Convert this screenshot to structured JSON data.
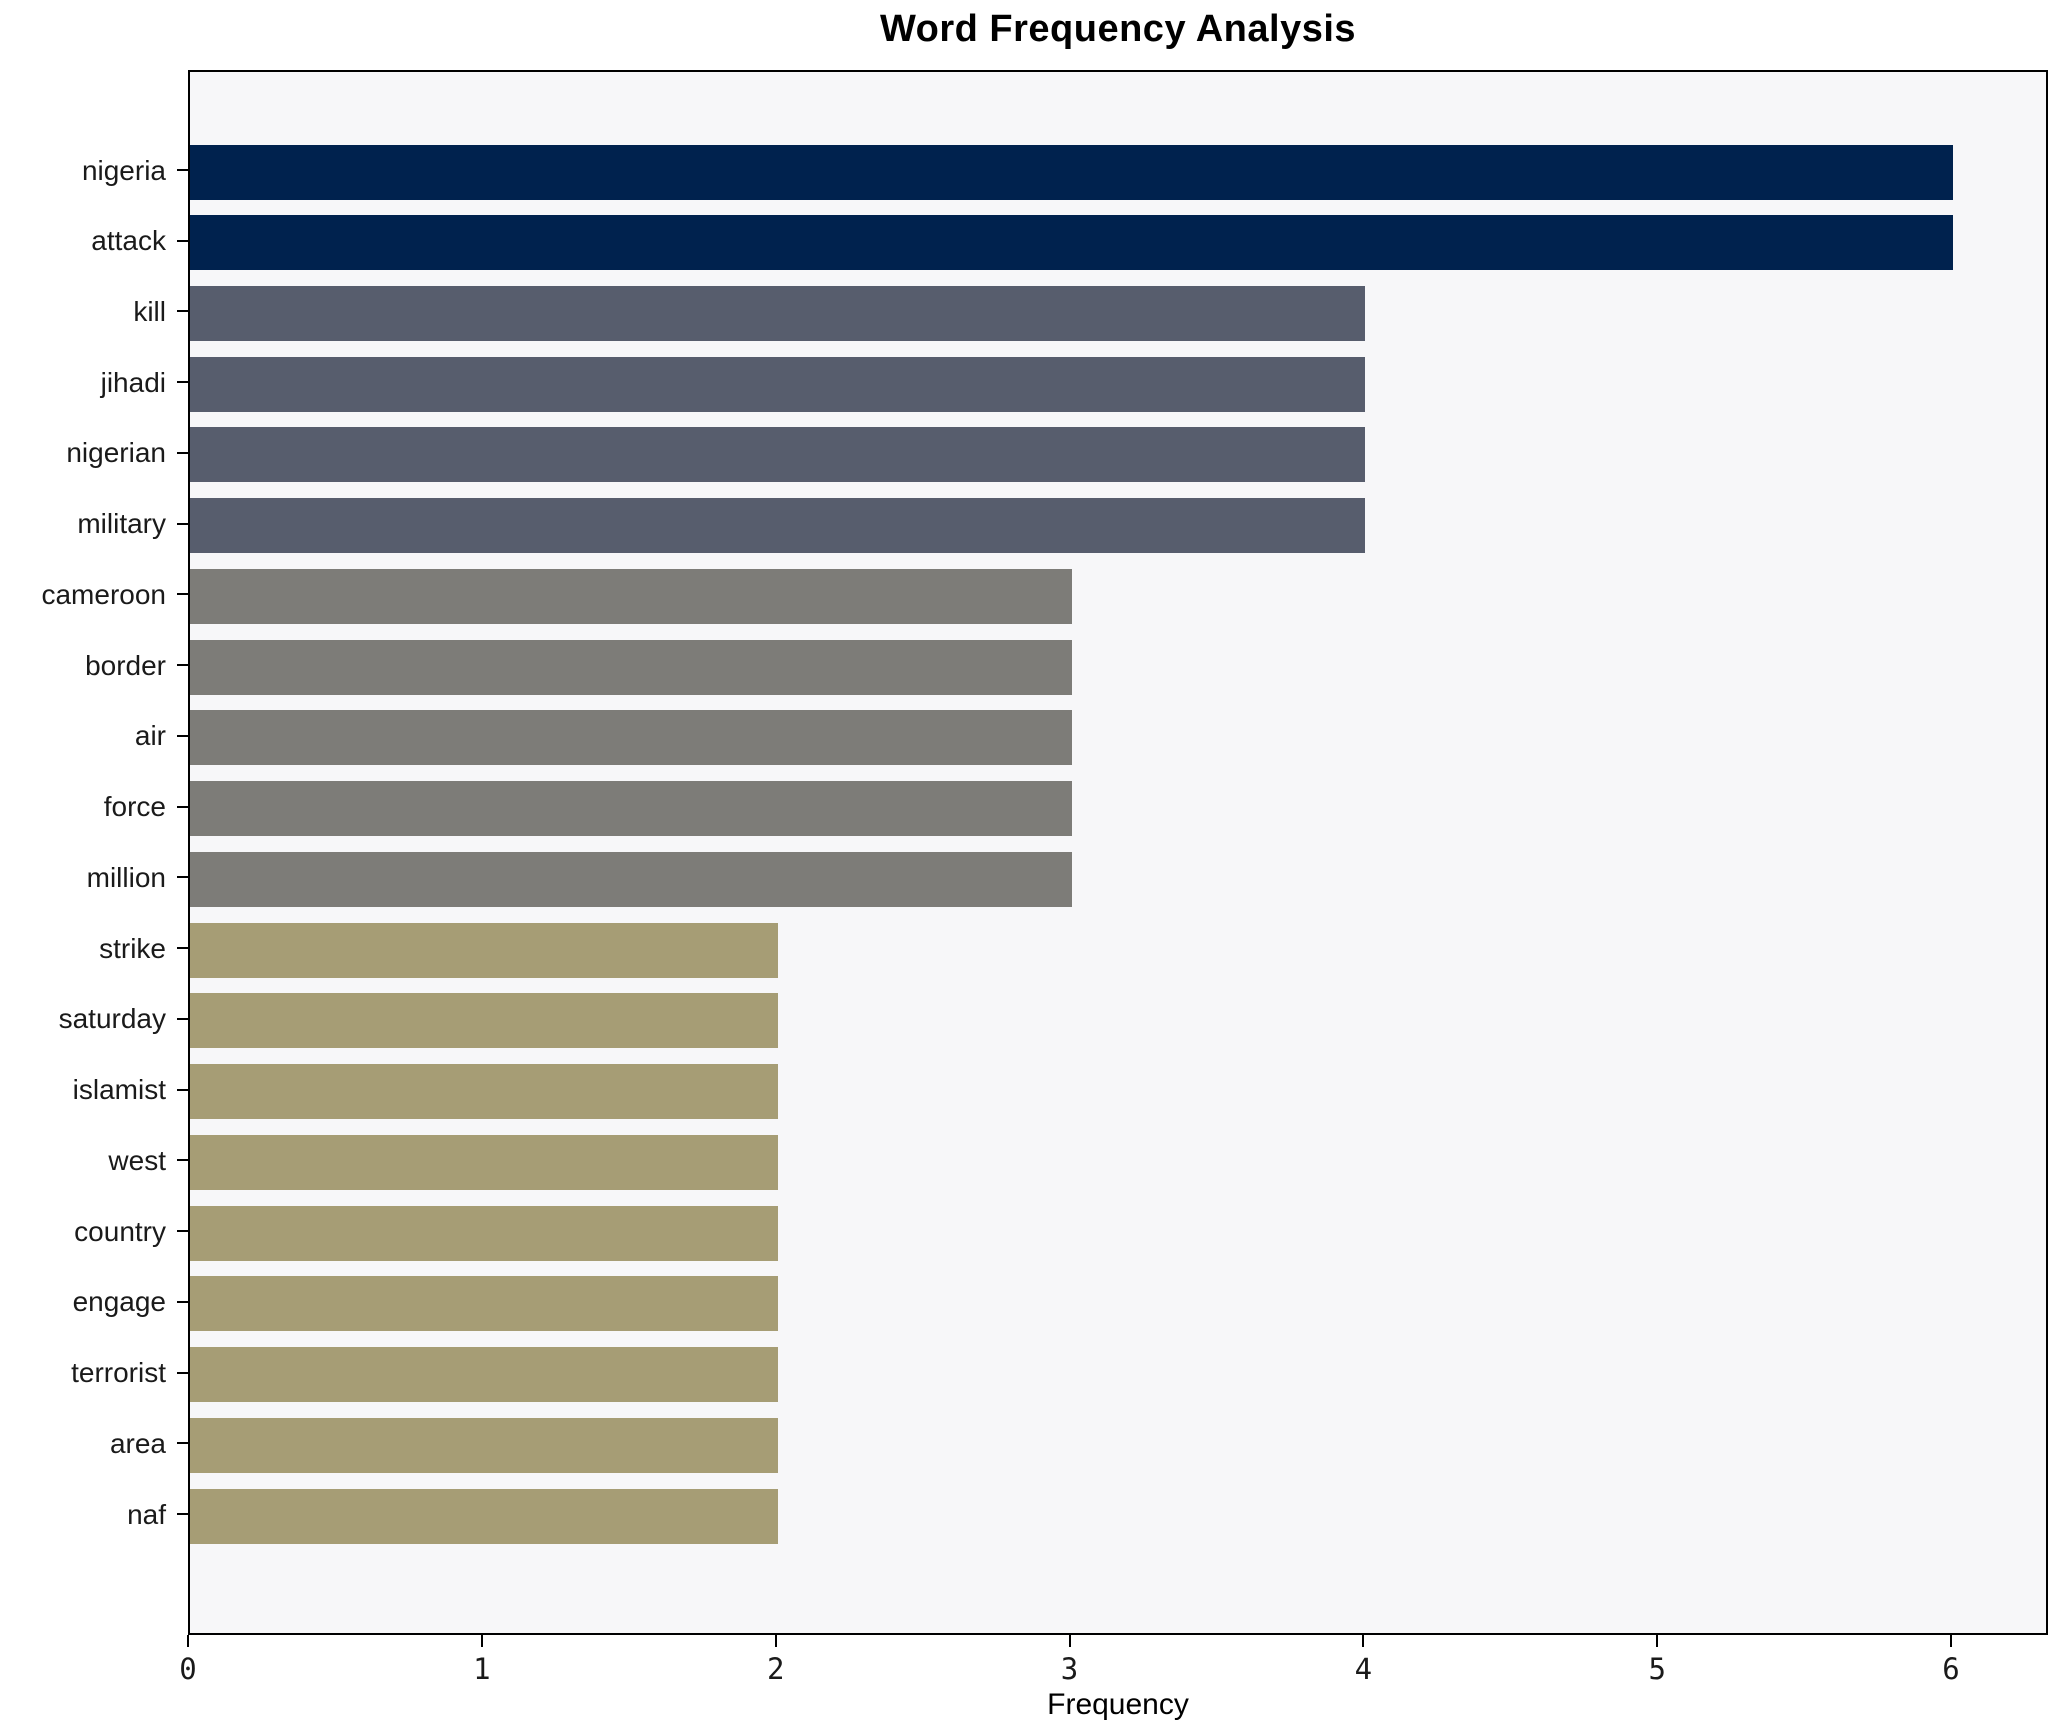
{
  "title": "Word Frequency Analysis",
  "chart_data": {
    "type": "bar",
    "orientation": "horizontal",
    "title": "Word Frequency Analysis",
    "xlabel": "Frequency",
    "ylabel": "",
    "categories": [
      "nigeria",
      "attack",
      "kill",
      "jihadi",
      "nigerian",
      "military",
      "cameroon",
      "border",
      "air",
      "force",
      "million",
      "strike",
      "saturday",
      "islamist",
      "west",
      "country",
      "engage",
      "terrorist",
      "area",
      "naf"
    ],
    "values": [
      6,
      6,
      4,
      4,
      4,
      4,
      3,
      3,
      3,
      3,
      3,
      2,
      2,
      2,
      2,
      2,
      2,
      2,
      2,
      2
    ],
    "x_ticks": [
      0,
      1,
      2,
      3,
      4,
      5,
      6
    ],
    "xlim": [
      0,
      6.33
    ],
    "grid": false,
    "legend": "none",
    "colors_by_value": {
      "6": "#00224e",
      "4": "#575d6d",
      "3": "#7d7c78",
      "2": "#a69d75"
    },
    "plot_background": "#f7f7f9",
    "figure_background": "#ffffff",
    "spine_color": "#000000"
  }
}
